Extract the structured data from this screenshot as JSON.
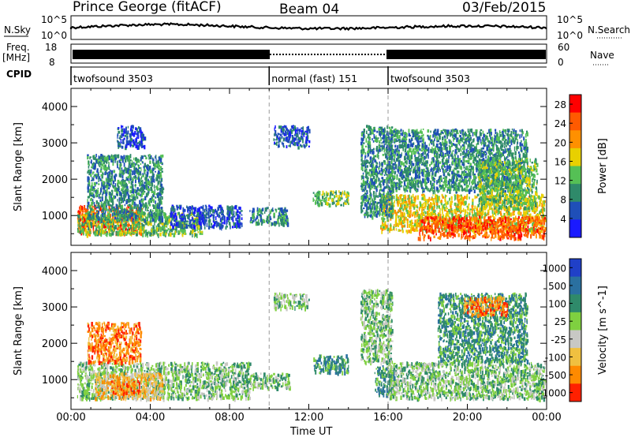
{
  "header": {
    "station": "Prince George (fitACF)",
    "beam": "Beam 04",
    "date": "03/Feb/2015"
  },
  "strip_labels": {
    "nsky": "N.Sky",
    "nsearch": "N.Search",
    "freq": "Freq.",
    "freq_unit": "[MHz]",
    "nave": "Nave",
    "cpid": "CPID",
    "left_top_ticks": [
      "10^5",
      "10^0"
    ],
    "right_top_ticks": [
      "10^5",
      "10^0"
    ],
    "freq_ticks": [
      "18",
      "8"
    ],
    "nave_ticks": [
      "60",
      "0"
    ]
  },
  "cpid_segments": [
    {
      "label": "twofsound 3503",
      "start": 0,
      "end": 10
    },
    {
      "label": "normal (fast) 151",
      "start": 10,
      "end": 16
    },
    {
      "label": "twofsound 3503",
      "start": 16,
      "end": 24
    }
  ],
  "chart_data": [
    {
      "type": "heatmap",
      "title": "Power",
      "xlabel": "Time UT",
      "ylabel": "Slant Range [km]",
      "x_ticks": [
        "00:00",
        "04:00",
        "08:00",
        "12:00",
        "16:00",
        "20:00",
        "00:00"
      ],
      "xlim": [
        0,
        24
      ],
      "ylim": [
        180,
        4500
      ],
      "y_ticks": [
        1000,
        2000,
        3000,
        4000
      ],
      "colorbar_label": "Power [dB]",
      "colorbar_ticks": [
        4,
        8,
        12,
        16,
        20,
        24,
        28
      ],
      "colorbar_range": [
        0,
        30
      ],
      "colors": [
        "#1a1aff",
        "#1f4fb8",
        "#2f8a6a",
        "#55c055",
        "#e8d000",
        "#ff9000",
        "#ff5a00",
        "#ff0000"
      ],
      "regions": [
        {
          "t0": 0.3,
          "t1": 3.6,
          "r0": 550,
          "r1": 1300,
          "level": 24
        },
        {
          "t0": 0.3,
          "t1": 6.6,
          "r0": 500,
          "r1": 1100,
          "level": 14
        },
        {
          "t0": 0.8,
          "t1": 4.6,
          "r0": 900,
          "r1": 2700,
          "level": 7
        },
        {
          "t0": 2.3,
          "t1": 3.7,
          "r0": 2900,
          "r1": 3500,
          "level": 5
        },
        {
          "t0": 5.0,
          "t1": 8.6,
          "r0": 700,
          "r1": 1300,
          "level": 6
        },
        {
          "t0": 9.0,
          "t1": 10.9,
          "r0": 800,
          "r1": 1250,
          "level": 9
        },
        {
          "t0": 10.2,
          "t1": 12.0,
          "r0": 2900,
          "r1": 3500,
          "level": 6
        },
        {
          "t0": 12.2,
          "t1": 14.0,
          "r0": 1300,
          "r1": 1700,
          "level": 11
        },
        {
          "t0": 15.6,
          "t1": 23.9,
          "r0": 600,
          "r1": 1600,
          "level": 18
        },
        {
          "t0": 17.5,
          "t1": 23.9,
          "r0": 400,
          "r1": 1000,
          "level": 24
        },
        {
          "t0": 16.0,
          "t1": 23.0,
          "r0": 1700,
          "r1": 3400,
          "level": 7
        },
        {
          "t0": 20.5,
          "t1": 23.5,
          "r0": 1200,
          "r1": 2600,
          "level": 12
        },
        {
          "t0": 14.6,
          "t1": 16.2,
          "r0": 1000,
          "r1": 3500,
          "level": 9
        }
      ]
    },
    {
      "type": "heatmap",
      "title": "Velocity",
      "xlabel": "Time UT",
      "ylabel": "Slant Range [km]",
      "x_ticks": [
        "00:00",
        "04:00",
        "08:00",
        "12:00",
        "16:00",
        "20:00",
        "00:00"
      ],
      "xlim": [
        0,
        24
      ],
      "ylim": [
        180,
        4500
      ],
      "y_ticks": [
        1000,
        2000,
        3000,
        4000
      ],
      "colorbar_label": "Velocity [m s^-1]",
      "colorbar_ticks": [
        "1000",
        "500",
        "100",
        "25",
        "-25",
        "-100",
        "-500",
        "-1000"
      ],
      "colors": [
        "#2040c8",
        "#2a70a0",
        "#2f8a6a",
        "#7fd040",
        "#c8c8c4",
        "#f0c040",
        "#ff8a00",
        "#ff2000"
      ],
      "regions": [
        {
          "t0": 0.3,
          "t1": 9.0,
          "r0": 500,
          "r1": 1500,
          "level": "25"
        },
        {
          "t0": 1.2,
          "t1": 4.6,
          "r0": 500,
          "r1": 1200,
          "level": "-100"
        },
        {
          "t0": 2.0,
          "t1": 3.5,
          "r0": 600,
          "r1": 1000,
          "level": "-500"
        },
        {
          "t0": 0.8,
          "t1": 3.5,
          "r0": 1500,
          "r1": 2600,
          "level": "-500"
        },
        {
          "t0": 9.0,
          "t1": 11.0,
          "r0": 800,
          "r1": 1200,
          "level": "25"
        },
        {
          "t0": 10.2,
          "t1": 12.0,
          "r0": 3000,
          "r1": 3400,
          "level": "25"
        },
        {
          "t0": 12.2,
          "t1": 14.0,
          "r0": 1200,
          "r1": 1700,
          "level": "100"
        },
        {
          "t0": 15.3,
          "t1": 16.3,
          "r0": 600,
          "r1": 1400,
          "level": "100"
        },
        {
          "t0": 16.0,
          "t1": 23.9,
          "r0": 500,
          "r1": 1500,
          "level": "25"
        },
        {
          "t0": 18.5,
          "t1": 23.0,
          "r0": 1500,
          "r1": 3400,
          "level": "100"
        },
        {
          "t0": 19.8,
          "t1": 22.0,
          "r0": 2800,
          "r1": 3300,
          "level": "-500"
        },
        {
          "t0": 14.6,
          "t1": 16.2,
          "r0": 1500,
          "r1": 3500,
          "level": "25"
        }
      ]
    }
  ]
}
